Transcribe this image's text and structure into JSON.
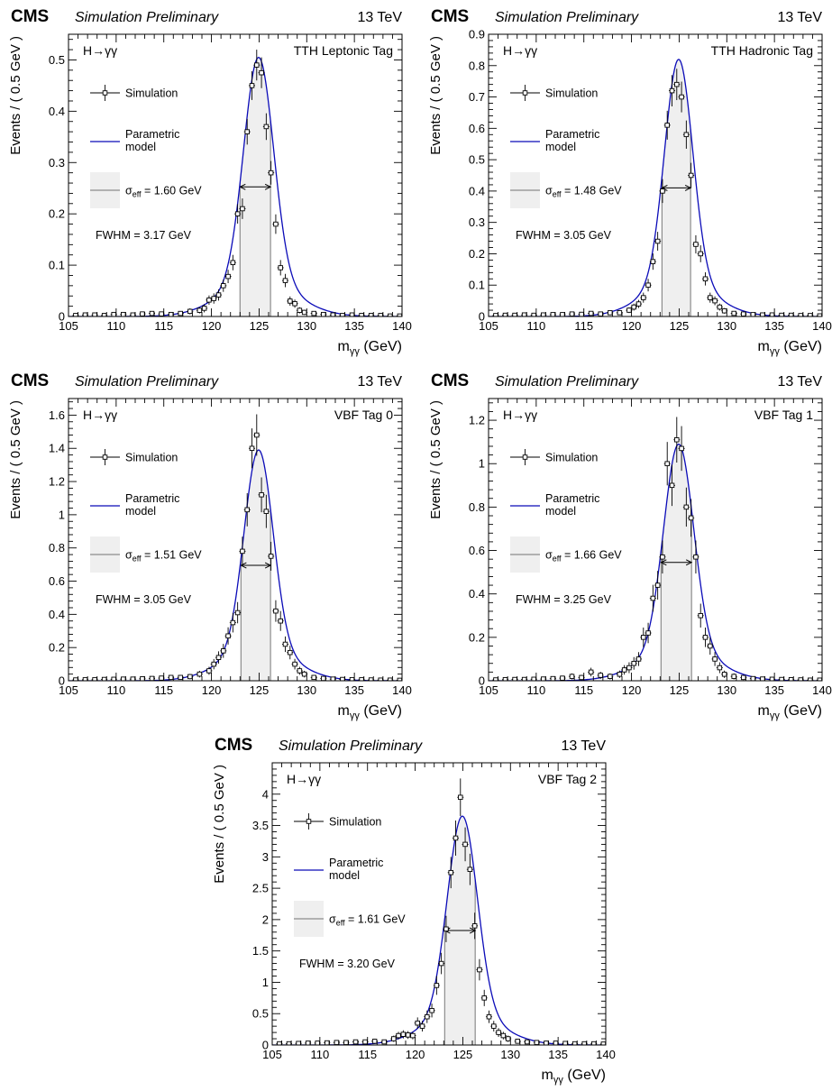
{
  "header": {
    "experiment": "CMS",
    "status": "Simulation Preliminary",
    "energy": "13 TeV"
  },
  "axis_labels": {
    "x_main": "m",
    "x_sub": "γγ",
    "x_unit": " (GeV)",
    "y": "Events / ( 0.5 GeV )"
  },
  "legend": {
    "process": "H→γγ",
    "simulation": "Simulation",
    "model_line1": "Parametric",
    "model_line2": "model",
    "sigma_symbol": "σ",
    "sigma_sub": "eff",
    "fwhm_prefix": "FWHM = "
  },
  "colors": {
    "model": "#0b0bb8",
    "band": "#efefef",
    "band_edge": "#8c8c8c"
  },
  "chart_data": [
    {
      "type": "line",
      "category": "TTH Leptonic Tag",
      "sigma_eff": "= 1.60 GeV",
      "fwhm": "3.17 GeV",
      "xlim": [
        105,
        140
      ],
      "ylim": [
        0,
        0.55
      ],
      "x_ticks": [
        "105",
        "110",
        "115",
        "120",
        "125",
        "130",
        "135",
        "140"
      ],
      "y_ticks": [
        {
          "v": 0,
          "t": "0"
        },
        {
          "v": 0.1,
          "t": "0.1"
        },
        {
          "v": 0.2,
          "t": "0.2"
        },
        {
          "v": 0.3,
          "t": "0.3"
        },
        {
          "v": 0.4,
          "t": "0.4"
        },
        {
          "v": 0.5,
          "t": "0.5"
        }
      ],
      "band": [
        123.0,
        126.2
      ],
      "model_peak": 0.505,
      "series": [
        {
          "name": "Simulation",
          "x": [
            105.75,
            106.75,
            107.75,
            108.75,
            109.75,
            110.75,
            111.75,
            112.75,
            113.75,
            114.75,
            115.75,
            116.75,
            117.75,
            118.75,
            119.25,
            119.75,
            120.25,
            120.75,
            121.25,
            121.75,
            122.25,
            122.75,
            123.25,
            123.75,
            124.25,
            124.75,
            125.25,
            125.75,
            126.25,
            126.75,
            127.25,
            127.75,
            128.25,
            128.75,
            129.25,
            129.75,
            130.75,
            131.75,
            132.75,
            133.75,
            134.75,
            135.75,
            136.75,
            137.75,
            138.75,
            139.75
          ],
          "y": [
            0.002,
            0.003,
            0.003,
            0.002,
            0.004,
            0.004,
            0.003,
            0.005,
            0.006,
            0.005,
            0.004,
            0.006,
            0.01,
            0.012,
            0.016,
            0.032,
            0.035,
            0.042,
            0.06,
            0.078,
            0.105,
            0.2,
            0.21,
            0.36,
            0.45,
            0.49,
            0.475,
            0.37,
            0.28,
            0.18,
            0.095,
            0.07,
            0.03,
            0.025,
            0.012,
            0.008,
            0.006,
            0.004,
            0.003,
            0.002,
            0.003,
            0.002,
            0.002,
            0.002,
            0.001,
            0.001
          ],
          "err": [
            0.004,
            0.004,
            0.004,
            0.004,
            0.004,
            0.004,
            0.004,
            0.004,
            0.004,
            0.004,
            0.004,
            0.004,
            0.006,
            0.006,
            0.008,
            0.009,
            0.01,
            0.011,
            0.012,
            0.013,
            0.015,
            0.019,
            0.02,
            0.025,
            0.028,
            0.03,
            0.03,
            0.026,
            0.023,
            0.019,
            0.015,
            0.013,
            0.009,
            0.008,
            0.006,
            0.005,
            0.004,
            0.004,
            0.004,
            0.004,
            0.004,
            0.004,
            0.004,
            0.004,
            0.004,
            0.004
          ]
        }
      ]
    },
    {
      "type": "line",
      "category": "TTH Hadronic Tag",
      "sigma_eff": "= 1.48 GeV",
      "fwhm": "3.05 GeV",
      "xlim": [
        105,
        140
      ],
      "ylim": [
        0,
        0.9
      ],
      "x_ticks": [
        "105",
        "110",
        "115",
        "120",
        "125",
        "130",
        "135",
        "140"
      ],
      "y_ticks": [
        {
          "v": 0,
          "t": "0"
        },
        {
          "v": 0.1,
          "t": "0.1"
        },
        {
          "v": 0.2,
          "t": "0.2"
        },
        {
          "v": 0.3,
          "t": "0.3"
        },
        {
          "v": 0.4,
          "t": "0.4"
        },
        {
          "v": 0.5,
          "t": "0.5"
        },
        {
          "v": 0.6,
          "t": "0.6"
        },
        {
          "v": 0.7,
          "t": "0.7"
        },
        {
          "v": 0.8,
          "t": "0.8"
        },
        {
          "v": 0.9,
          "t": "0.9"
        }
      ],
      "band": [
        123.2,
        126.2
      ],
      "model_peak": 0.82,
      "series": [
        {
          "name": "Simulation",
          "x": [
            105.75,
            106.75,
            107.75,
            108.75,
            109.75,
            110.75,
            111.75,
            112.75,
            113.75,
            114.75,
            115.75,
            116.75,
            117.75,
            118.75,
            119.75,
            120.25,
            120.75,
            121.25,
            121.75,
            122.25,
            122.75,
            123.25,
            123.75,
            124.25,
            124.75,
            125.25,
            125.75,
            126.25,
            126.75,
            127.25,
            127.75,
            128.25,
            128.75,
            129.25,
            129.75,
            130.75,
            131.75,
            132.75,
            133.75,
            134.75,
            135.75,
            136.75,
            137.75,
            138.75,
            139.75
          ],
          "y": [
            0.003,
            0.004,
            0.004,
            0.005,
            0.004,
            0.005,
            0.006,
            0.006,
            0.008,
            0.007,
            0.01,
            0.008,
            0.012,
            0.012,
            0.02,
            0.03,
            0.04,
            0.06,
            0.1,
            0.175,
            0.24,
            0.4,
            0.61,
            0.72,
            0.74,
            0.7,
            0.58,
            0.45,
            0.23,
            0.2,
            0.12,
            0.06,
            0.05,
            0.03,
            0.018,
            0.01,
            0.008,
            0.006,
            0.005,
            0.005,
            0.004,
            0.004,
            0.003,
            0.003,
            0.002
          ],
          "err": [
            0.005,
            0.005,
            0.005,
            0.005,
            0.005,
            0.005,
            0.005,
            0.005,
            0.006,
            0.006,
            0.006,
            0.006,
            0.007,
            0.007,
            0.009,
            0.011,
            0.013,
            0.016,
            0.02,
            0.026,
            0.03,
            0.038,
            0.046,
            0.05,
            0.05,
            0.049,
            0.045,
            0.04,
            0.029,
            0.027,
            0.021,
            0.016,
            0.014,
            0.011,
            0.009,
            0.007,
            0.006,
            0.005,
            0.005,
            0.005,
            0.005,
            0.005,
            0.005,
            0.005,
            0.005
          ]
        }
      ]
    },
    {
      "type": "line",
      "category": "VBF Tag 0",
      "sigma_eff": "= 1.51 GeV",
      "fwhm": "3.05 GeV",
      "xlim": [
        105,
        140
      ],
      "ylim": [
        0,
        1.7
      ],
      "x_ticks": [
        "105",
        "110",
        "115",
        "120",
        "125",
        "130",
        "135",
        "140"
      ],
      "y_ticks": [
        {
          "v": 0,
          "t": "0"
        },
        {
          "v": 0.2,
          "t": "0.2"
        },
        {
          "v": 0.4,
          "t": "0.4"
        },
        {
          "v": 0.6,
          "t": "0.6"
        },
        {
          "v": 0.8,
          "t": "0.8"
        },
        {
          "v": 1.0,
          "t": "1"
        },
        {
          "v": 1.2,
          "t": "1.2"
        },
        {
          "v": 1.4,
          "t": "1.4"
        },
        {
          "v": 1.6,
          "t": "1.6"
        }
      ],
      "band": [
        123.1,
        126.2
      ],
      "model_peak": 1.39,
      "series": [
        {
          "name": "Simulation",
          "x": [
            105.75,
            106.75,
            107.75,
            108.75,
            109.75,
            110.75,
            111.75,
            112.75,
            113.75,
            114.75,
            115.75,
            116.75,
            117.75,
            118.75,
            119.75,
            120.25,
            120.75,
            121.25,
            121.75,
            122.25,
            122.75,
            123.25,
            123.75,
            124.25,
            124.75,
            125.25,
            125.75,
            126.25,
            126.75,
            127.25,
            127.75,
            128.25,
            128.75,
            129.25,
            129.75,
            130.75,
            131.75,
            132.75,
            133.75,
            134.75,
            135.75,
            136.75,
            137.75,
            138.75,
            139.75
          ],
          "y": [
            0.005,
            0.006,
            0.006,
            0.008,
            0.009,
            0.01,
            0.01,
            0.012,
            0.014,
            0.016,
            0.02,
            0.02,
            0.025,
            0.04,
            0.06,
            0.1,
            0.14,
            0.18,
            0.27,
            0.35,
            0.41,
            0.78,
            1.03,
            1.4,
            1.48,
            1.12,
            1.02,
            0.75,
            0.42,
            0.36,
            0.22,
            0.17,
            0.1,
            0.06,
            0.04,
            0.02,
            0.014,
            0.01,
            0.008,
            0.007,
            0.006,
            0.005,
            0.004,
            0.004,
            0.003
          ],
          "err": [
            0.01,
            0.01,
            0.01,
            0.01,
            0.01,
            0.01,
            0.011,
            0.011,
            0.012,
            0.013,
            0.014,
            0.014,
            0.016,
            0.02,
            0.024,
            0.031,
            0.037,
            0.042,
            0.052,
            0.059,
            0.064,
            0.088,
            0.1,
            0.12,
            0.125,
            0.105,
            0.1,
            0.087,
            0.065,
            0.06,
            0.047,
            0.041,
            0.032,
            0.024,
            0.02,
            0.014,
            0.012,
            0.01,
            0.01,
            0.01,
            0.01,
            0.01,
            0.01,
            0.01,
            0.01
          ]
        }
      ]
    },
    {
      "type": "line",
      "category": "VBF Tag 1",
      "sigma_eff": "= 1.66 GeV",
      "fwhm": "3.25 GeV",
      "xlim": [
        105,
        140
      ],
      "ylim": [
        0,
        1.3
      ],
      "x_ticks": [
        "105",
        "110",
        "115",
        "120",
        "125",
        "130",
        "135",
        "140"
      ],
      "y_ticks": [
        {
          "v": 0,
          "t": "0"
        },
        {
          "v": 0.2,
          "t": "0.2"
        },
        {
          "v": 0.4,
          "t": "0.4"
        },
        {
          "v": 0.6,
          "t": "0.6"
        },
        {
          "v": 0.8,
          "t": "0.8"
        },
        {
          "v": 1.0,
          "t": "1"
        },
        {
          "v": 1.2,
          "t": "1.2"
        }
      ],
      "band": [
        123.1,
        126.3
      ],
      "model_peak": 1.09,
      "series": [
        {
          "name": "Simulation",
          "x": [
            105.75,
            106.75,
            107.75,
            108.75,
            109.75,
            110.75,
            111.75,
            112.75,
            113.75,
            114.75,
            115.75,
            116.75,
            117.75,
            118.75,
            119.25,
            119.75,
            120.25,
            120.75,
            121.25,
            121.75,
            122.25,
            122.75,
            123.25,
            123.75,
            124.25,
            124.75,
            125.25,
            125.75,
            126.25,
            126.75,
            127.25,
            127.75,
            128.25,
            128.75,
            129.25,
            129.75,
            130.75,
            131.75,
            132.75,
            133.75,
            134.75,
            135.75,
            136.75,
            137.75,
            138.75,
            139.75
          ],
          "y": [
            0.004,
            0.005,
            0.006,
            0.006,
            0.007,
            0.008,
            0.01,
            0.012,
            0.02,
            0.015,
            0.04,
            0.025,
            0.02,
            0.03,
            0.05,
            0.06,
            0.08,
            0.1,
            0.2,
            0.22,
            0.38,
            0.44,
            0.57,
            1.0,
            0.9,
            1.11,
            1.07,
            0.8,
            0.75,
            0.57,
            0.3,
            0.2,
            0.16,
            0.1,
            0.06,
            0.03,
            0.02,
            0.015,
            0.01,
            0.008,
            0.007,
            0.006,
            0.005,
            0.004,
            0.003,
            0.003
          ],
          "err": [
            0.008,
            0.008,
            0.008,
            0.008,
            0.009,
            0.009,
            0.01,
            0.011,
            0.014,
            0.012,
            0.02,
            0.016,
            0.014,
            0.017,
            0.022,
            0.025,
            0.029,
            0.032,
            0.045,
            0.047,
            0.062,
            0.066,
            0.076,
            0.1,
            0.095,
            0.105,
            0.103,
            0.09,
            0.087,
            0.076,
            0.055,
            0.045,
            0.04,
            0.032,
            0.025,
            0.017,
            0.014,
            0.012,
            0.01,
            0.009,
            0.009,
            0.008,
            0.008,
            0.008,
            0.008,
            0.008
          ]
        }
      ]
    },
    {
      "type": "line",
      "category": "VBF Tag 2",
      "sigma_eff": "= 1.61 GeV",
      "fwhm": "3.20 GeV",
      "xlim": [
        105,
        140
      ],
      "ylim": [
        0,
        4.5
      ],
      "x_ticks": [
        "105",
        "110",
        "115",
        "120",
        "125",
        "130",
        "135",
        "140"
      ],
      "y_ticks": [
        {
          "v": 0,
          "t": "0"
        },
        {
          "v": 0.5,
          "t": "0.5"
        },
        {
          "v": 1.0,
          "t": "1"
        },
        {
          "v": 1.5,
          "t": "1.5"
        },
        {
          "v": 2.0,
          "t": "2"
        },
        {
          "v": 2.5,
          "t": "2.5"
        },
        {
          "v": 3.0,
          "t": "3"
        },
        {
          "v": 3.5,
          "t": "3.5"
        },
        {
          "v": 4.0,
          "t": "4"
        }
      ],
      "band": [
        123.1,
        126.3
      ],
      "model_peak": 3.65,
      "series": [
        {
          "name": "Simulation",
          "x": [
            105.75,
            106.75,
            107.75,
            108.75,
            109.75,
            110.75,
            111.75,
            112.75,
            113.75,
            114.75,
            115.75,
            116.75,
            117.75,
            118.25,
            118.75,
            119.25,
            119.75,
            120.25,
            120.75,
            121.25,
            121.75,
            122.25,
            122.75,
            123.25,
            123.75,
            124.25,
            124.75,
            125.25,
            125.75,
            126.25,
            126.75,
            127.25,
            127.75,
            128.25,
            128.75,
            129.25,
            129.75,
            130.75,
            131.75,
            132.75,
            133.75,
            134.75,
            135.75,
            136.75,
            137.75,
            138.75,
            139.75
          ],
          "y": [
            0.02,
            0.02,
            0.025,
            0.03,
            0.03,
            0.035,
            0.04,
            0.04,
            0.05,
            0.05,
            0.06,
            0.05,
            0.1,
            0.15,
            0.17,
            0.16,
            0.15,
            0.35,
            0.3,
            0.45,
            0.55,
            0.95,
            1.3,
            1.85,
            2.75,
            3.3,
            3.95,
            3.2,
            2.8,
            1.9,
            1.2,
            0.75,
            0.45,
            0.3,
            0.2,
            0.15,
            0.1,
            0.06,
            0.05,
            0.04,
            0.03,
            0.03,
            0.025,
            0.02,
            0.02,
            0.02,
            0.015
          ],
          "err": [
            0.03,
            0.03,
            0.03,
            0.03,
            0.03,
            0.03,
            0.03,
            0.03,
            0.035,
            0.035,
            0.04,
            0.035,
            0.05,
            0.06,
            0.065,
            0.062,
            0.06,
            0.09,
            0.085,
            0.1,
            0.11,
            0.15,
            0.17,
            0.21,
            0.25,
            0.28,
            0.3,
            0.27,
            0.25,
            0.21,
            0.17,
            0.13,
            0.1,
            0.085,
            0.07,
            0.06,
            0.05,
            0.04,
            0.035,
            0.03,
            0.03,
            0.03,
            0.03,
            0.03,
            0.03,
            0.03,
            0.03
          ]
        }
      ]
    }
  ]
}
